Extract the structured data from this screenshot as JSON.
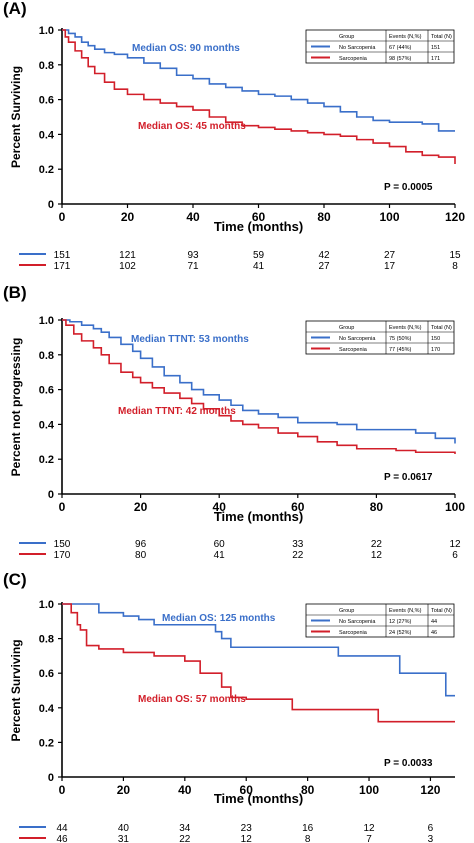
{
  "colors": {
    "no_sarcopenia": "#3a6fc9",
    "sarcopenia": "#d21f2a",
    "axis": "#000000"
  },
  "chart_data": [
    {
      "type": "line",
      "panel_label": "(A)",
      "ylabel": "Percent Surviving",
      "xlabel": "Time (months)",
      "xlim": [
        0,
        120
      ],
      "ylim": [
        0,
        1.0
      ],
      "x_ticks": [
        "0",
        "20",
        "40",
        "60",
        "80",
        "100",
        "120"
      ],
      "y_ticks": [
        "0",
        "0.2",
        "0.4",
        "0.6",
        "0.8",
        "1.0"
      ],
      "annotations": {
        "median_blue": "Median OS:  90 months",
        "median_red": "Median OS:  45 months",
        "p_value": "P =  0.0005"
      },
      "legend": {
        "headers": [
          "Group",
          "Events (N,%)",
          "Total (N)"
        ],
        "rows": [
          {
            "group": "No Sarcopenia",
            "events": "67 (44%)",
            "total": "151"
          },
          {
            "group": "Sarcopenia",
            "events": "98 (57%)",
            "total": "171"
          }
        ]
      },
      "series": [
        {
          "name": "No Sarcopenia",
          "x": [
            0,
            2,
            4,
            6,
            8,
            10,
            13,
            16,
            20,
            25,
            30,
            35,
            40,
            45,
            50,
            55,
            60,
            65,
            70,
            75,
            80,
            85,
            90,
            95,
            100,
            105,
            110,
            115,
            120
          ],
          "y": [
            1.0,
            0.98,
            0.96,
            0.93,
            0.91,
            0.89,
            0.87,
            0.86,
            0.84,
            0.81,
            0.78,
            0.74,
            0.72,
            0.69,
            0.67,
            0.65,
            0.63,
            0.62,
            0.6,
            0.58,
            0.56,
            0.53,
            0.5,
            0.48,
            0.47,
            0.47,
            0.46,
            0.42,
            0.42
          ]
        },
        {
          "name": "Sarcopenia",
          "x": [
            0,
            1,
            2,
            4,
            6,
            8,
            10,
            13,
            16,
            20,
            25,
            30,
            35,
            40,
            45,
            50,
            55,
            60,
            65,
            70,
            75,
            80,
            85,
            90,
            95,
            100,
            105,
            110,
            115,
            120
          ],
          "y": [
            1.0,
            0.96,
            0.93,
            0.88,
            0.84,
            0.79,
            0.75,
            0.7,
            0.66,
            0.63,
            0.6,
            0.58,
            0.56,
            0.54,
            0.5,
            0.47,
            0.45,
            0.44,
            0.43,
            0.42,
            0.41,
            0.4,
            0.39,
            0.37,
            0.35,
            0.33,
            0.3,
            0.28,
            0.27,
            0.23
          ]
        }
      ],
      "at_risk": {
        "x": [
          0,
          20,
          40,
          60,
          80,
          100,
          120
        ],
        "rows": [
          {
            "name": "No Sarcopenia",
            "values": [
              "151",
              "121",
              "93",
              "59",
              "42",
              "27",
              "15"
            ]
          },
          {
            "name": "Sarcopenia",
            "values": [
              "171",
              "102",
              "71",
              "41",
              "27",
              "17",
              "8"
            ]
          }
        ]
      }
    },
    {
      "type": "line",
      "panel_label": "(B)",
      "ylabel": "Percent not progressing",
      "xlabel": "Time (months)",
      "xlim": [
        0,
        100
      ],
      "ylim": [
        0,
        1.0
      ],
      "x_ticks": [
        "0",
        "20",
        "40",
        "60",
        "80",
        "100"
      ],
      "y_ticks": [
        "0",
        "0.2",
        "0.4",
        "0.6",
        "0.8",
        "1.0"
      ],
      "annotations": {
        "median_blue": "Median TTNT:  53 months",
        "median_red": "Median TTNT:  42 months",
        "p_value": "P =  0.0617"
      },
      "legend": {
        "headers": [
          "Group",
          "Events (N,%)",
          "Total (N)"
        ],
        "rows": [
          {
            "group": "No Sarcopenia",
            "events": "75 (50%)",
            "total": "150"
          },
          {
            "group": "Sarcopenia",
            "events": "77 (45%)",
            "total": "170"
          }
        ]
      },
      "series": [
        {
          "name": "No Sarcopenia",
          "x": [
            0,
            2,
            5,
            8,
            10,
            12,
            15,
            18,
            20,
            23,
            26,
            30,
            33,
            36,
            40,
            43,
            46,
            50,
            55,
            60,
            65,
            70,
            75,
            80,
            85,
            90,
            95,
            100
          ],
          "y": [
            1.0,
            0.99,
            0.97,
            0.95,
            0.93,
            0.9,
            0.86,
            0.82,
            0.78,
            0.73,
            0.68,
            0.64,
            0.6,
            0.57,
            0.54,
            0.51,
            0.48,
            0.46,
            0.44,
            0.41,
            0.41,
            0.4,
            0.37,
            0.37,
            0.37,
            0.35,
            0.32,
            0.29
          ]
        },
        {
          "name": "Sarcopenia",
          "x": [
            0,
            1,
            3,
            5,
            8,
            10,
            12,
            15,
            18,
            20,
            23,
            26,
            30,
            33,
            36,
            40,
            43,
            46,
            50,
            55,
            60,
            65,
            70,
            75,
            80,
            85,
            90,
            95,
            100
          ],
          "y": [
            1.0,
            0.97,
            0.92,
            0.88,
            0.84,
            0.8,
            0.75,
            0.7,
            0.67,
            0.64,
            0.61,
            0.58,
            0.55,
            0.52,
            0.49,
            0.45,
            0.42,
            0.4,
            0.38,
            0.35,
            0.33,
            0.3,
            0.28,
            0.26,
            0.26,
            0.25,
            0.24,
            0.24,
            0.23
          ]
        }
      ],
      "at_risk": {
        "x": [
          0,
          20,
          40,
          60,
          80,
          100
        ],
        "rows": [
          {
            "name": "No Sarcopenia",
            "values": [
              "150",
              "96",
              "60",
              "33",
              "22",
              "12"
            ]
          },
          {
            "name": "Sarcopenia",
            "values": [
              "170",
              "80",
              "41",
              "22",
              "12",
              "6"
            ]
          }
        ]
      }
    },
    {
      "type": "line",
      "panel_label": "(C)",
      "ylabel": "Percent Surviving",
      "xlabel": "Time (months)",
      "xlim": [
        0,
        128
      ],
      "ylim": [
        0,
        1.0
      ],
      "x_ticks": [
        "0",
        "20",
        "40",
        "60",
        "80",
        "100",
        "120"
      ],
      "x_tick_values": [
        0,
        20,
        40,
        60,
        80,
        100,
        120
      ],
      "y_ticks": [
        "0",
        "0.2",
        "0.4",
        "0.6",
        "0.8",
        "1.0"
      ],
      "annotations": {
        "median_blue": "Median OS:  125 months",
        "median_red": "Median OS:  57 months",
        "p_value": "P =  0.0033"
      },
      "legend": {
        "headers": [
          "Group",
          "Events (N,%)",
          "Total (N)"
        ],
        "rows": [
          {
            "group": "No Sarcopenia",
            "events": "12 (27%)",
            "total": "44"
          },
          {
            "group": "Sarcopenia",
            "events": "24 (52%)",
            "total": "46"
          }
        ]
      },
      "series": [
        {
          "name": "No Sarcopenia",
          "x": [
            0,
            10,
            12,
            20,
            25,
            30,
            50,
            52,
            55,
            60,
            90,
            110,
            125,
            128
          ],
          "y": [
            1.0,
            1.0,
            0.95,
            0.93,
            0.91,
            0.88,
            0.84,
            0.8,
            0.75,
            0.75,
            0.7,
            0.6,
            0.47,
            0.47
          ]
        },
        {
          "name": "Sarcopenia",
          "x": [
            0,
            3,
            5,
            6,
            8,
            12,
            20,
            30,
            40,
            45,
            52,
            55,
            60,
            75,
            85,
            103,
            128
          ],
          "y": [
            1.0,
            0.95,
            0.88,
            0.85,
            0.76,
            0.74,
            0.72,
            0.7,
            0.67,
            0.6,
            0.52,
            0.46,
            0.45,
            0.39,
            0.39,
            0.32,
            0.32
          ]
        }
      ],
      "at_risk": {
        "x": [
          0,
          20,
          40,
          60,
          80,
          100,
          120
        ],
        "rows": [
          {
            "name": "No Sarcopenia",
            "values": [
              "44",
              "40",
              "34",
              "23",
              "16",
              "12",
              "6"
            ]
          },
          {
            "name": "Sarcopenia",
            "values": [
              "46",
              "31",
              "22",
              "12",
              "8",
              "7",
              "3"
            ]
          }
        ]
      }
    }
  ]
}
